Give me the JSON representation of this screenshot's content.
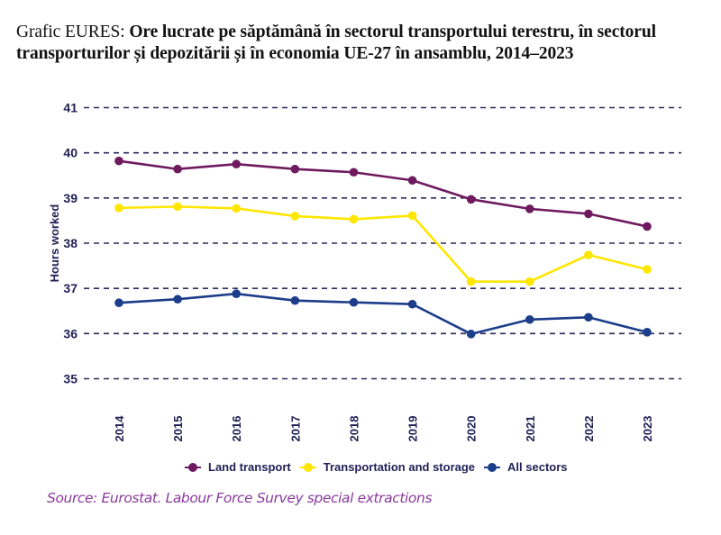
{
  "header": {
    "prefix": "Grafic EURES: ",
    "title_bold": "Ore lucrate pe săptămână în sectorul transportului terestru, în sectorul transporturilor și depozitării și în economia UE-27 în ansamblu, 2014–2023"
  },
  "chart_data": {
    "type": "line",
    "title": "Ore lucrate pe săptămână în sectorul transportului terestru, în sectorul transporturilor și depozitării și în economia UE-27 în ansamblu, 2014–2023",
    "xlabel": "",
    "ylabel": "Hours worked",
    "x": [
      "2014",
      "2015",
      "2016",
      "2017",
      "2018",
      "2019",
      "2020",
      "2021",
      "2022",
      "2023"
    ],
    "ylim": [
      35,
      41
    ],
    "yticks": [
      "35",
      "36",
      "37",
      "38",
      "39",
      "40",
      "41"
    ],
    "grid": "horizontal-dashed",
    "legend_position": "bottom",
    "series": [
      {
        "name": "Land transport",
        "color": "#6e1a5e",
        "values": [
          39.82,
          39.64,
          39.75,
          39.64,
          39.57,
          39.39,
          38.97,
          38.76,
          38.65,
          38.37
        ]
      },
      {
        "name": "Transportation and storage",
        "color": "#ffe600",
        "values": [
          38.78,
          38.81,
          38.77,
          38.6,
          38.53,
          38.61,
          37.15,
          37.15,
          37.74,
          37.42
        ]
      },
      {
        "name": "All sectors",
        "color": "#1c3d8a",
        "values": [
          36.68,
          36.76,
          36.88,
          36.73,
          36.69,
          36.65,
          35.99,
          36.31,
          36.36,
          36.03
        ]
      }
    ]
  },
  "footer": {
    "source": "Source: Eurostat. Labour Force Survey special extractions"
  }
}
